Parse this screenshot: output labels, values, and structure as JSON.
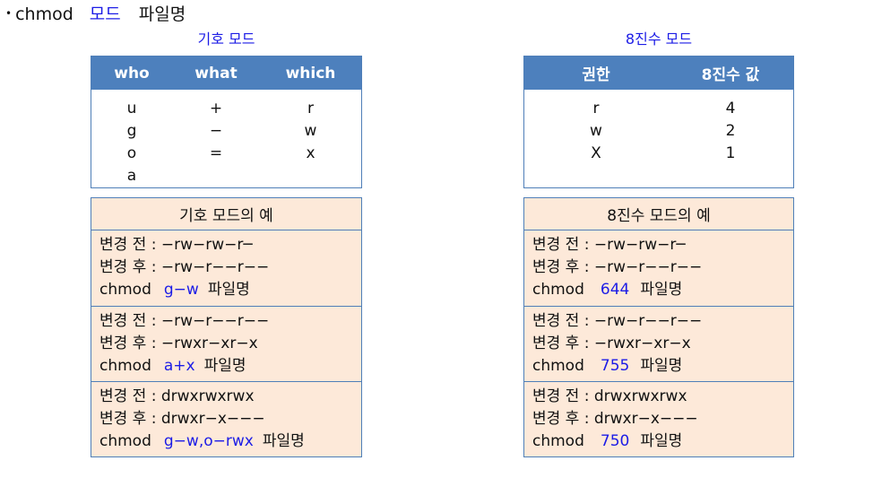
{
  "heading": {
    "bullet": "•",
    "command": "chmod",
    "mode": "모드",
    "file": "파일명"
  },
  "symbolic": {
    "caption": "기호 모드",
    "headers": [
      "who",
      "what",
      "which"
    ],
    "rows": [
      [
        "u",
        "+",
        "r"
      ],
      [
        "g",
        "−",
        "w"
      ],
      [
        "o",
        "=",
        "x"
      ],
      [
        "a",
        "",
        ""
      ]
    ],
    "examples_title": "기호 모드의 예",
    "examples": [
      {
        "before": "변경 전 : −rw−rw−r─",
        "after": "변경 후 : −rw−r−−r−−",
        "cmd": "chmod",
        "mode": "g−w",
        "file": "파일명"
      },
      {
        "before": "변경 전 : −rw−r−−r−−",
        "after": "변경 후 : −rwxr−xr−x",
        "cmd": "chmod",
        "mode": "a+x",
        "file": "파일명"
      },
      {
        "before": "변경 전 : drwxrwxrwx",
        "after": "변경 후 : drwxr−x−−−",
        "cmd": "chmod",
        "mode": "g−w,o−rwx",
        "file": "파일명"
      }
    ]
  },
  "octal": {
    "caption": "8진수 모드",
    "headers": [
      "권한",
      "8진수 값"
    ],
    "rows": [
      [
        "r",
        "4"
      ],
      [
        "w",
        "2"
      ],
      [
        "X",
        "1"
      ]
    ],
    "examples_title": "8진수 모드의 예",
    "examples": [
      {
        "before": "변경 전 : −rw−rw−r─",
        "after": "변경 후 : −rw−r−−r−−",
        "cmd": "chmod",
        "mode": "644",
        "file": "파일명"
      },
      {
        "before": "변경 전 : −rw−r−−r−−",
        "after": "변경 후 : −rwxr−xr−x",
        "cmd": "chmod",
        "mode": "755",
        "file": "파일명"
      },
      {
        "before": "변경 전 : drwxrwxrwx",
        "after": "변경 후 : drwxr−x−−−",
        "cmd": "chmod",
        "mode": "750",
        "file": "파일명"
      }
    ]
  },
  "colors": {
    "header_bg": "#4d80bd",
    "border": "#4f7fb8",
    "example_bg": "#fde9d9",
    "accent": "#1c1ce6"
  }
}
